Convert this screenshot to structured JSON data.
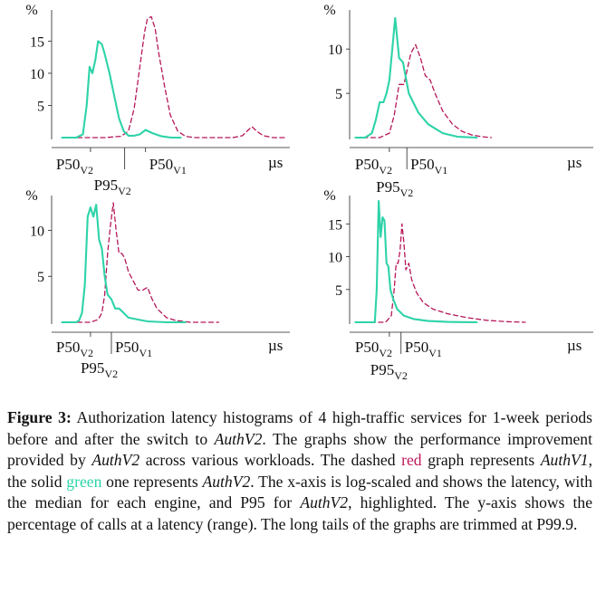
{
  "colors": {
    "v1": "#b5175a",
    "v2": "#2ed3a8",
    "axis": "#222222",
    "caption_red": "#c0185a",
    "caption_green": "#2bd4a8"
  },
  "chart_data": [
    {
      "type": "line",
      "x_scale": "log",
      "y_unit": "%",
      "x_unit": "µs",
      "yticks": [
        5,
        10,
        15
      ],
      "ylim": [
        0,
        19
      ],
      "x_markers": [
        {
          "label": "P50",
          "sub": "V2",
          "x": 0.4
        },
        {
          "label": "P95",
          "sub": "V2",
          "x": 0.76
        },
        {
          "label": "P50",
          "sub": "V1",
          "x": 0.98
        }
      ],
      "series": [
        {
          "id": "v1",
          "style": "dashed",
          "x": [
            0.1,
            0.3,
            0.55,
            0.72,
            0.8,
            0.86,
            0.92,
            0.97,
            1.0,
            1.04,
            1.08,
            1.12,
            1.18,
            1.24,
            1.32,
            1.4,
            1.5,
            1.7,
            1.9,
            2.0,
            2.05,
            2.1,
            2.15,
            2.22,
            2.32,
            2.45
          ],
          "y": [
            0,
            0,
            0,
            0.2,
            1.0,
            4.5,
            11.0,
            16.5,
            18.5,
            18.8,
            17.0,
            13.0,
            8.0,
            3.5,
            1.0,
            0.2,
            0,
            0,
            0,
            0.3,
            1.0,
            1.7,
            1.0,
            0.3,
            0,
            0
          ]
        },
        {
          "id": "v2",
          "style": "solid",
          "x": [
            0.1,
            0.25,
            0.32,
            0.36,
            0.39,
            0.42,
            0.45,
            0.48,
            0.52,
            0.55,
            0.6,
            0.65,
            0.7,
            0.75,
            0.8,
            0.86,
            0.92,
            0.98,
            1.05,
            1.15,
            1.25,
            1.35
          ],
          "y": [
            0,
            0,
            0.5,
            5.0,
            11.0,
            10.0,
            12.0,
            15.0,
            14.5,
            13.0,
            10.0,
            6.5,
            3.0,
            1.0,
            0.3,
            0.3,
            0.5,
            1.2,
            0.7,
            0.2,
            0,
            0
          ]
        }
      ]
    },
    {
      "type": "line",
      "x_scale": "log",
      "y_unit": "%",
      "x_unit": "µs",
      "yticks": [
        5,
        10
      ],
      "ylim": [
        0,
        13.8
      ],
      "x_markers": [
        {
          "label": "P50",
          "sub": "V2",
          "x": 0.4
        },
        {
          "label": "P95",
          "sub": "V2",
          "x": 0.58
        },
        {
          "label": "P50",
          "sub": "V1",
          "x": 0.58
        }
      ],
      "series": [
        {
          "id": "v1",
          "style": "dashed",
          "x": [
            0.05,
            0.3,
            0.4,
            0.45,
            0.5,
            0.55,
            0.58,
            0.62,
            0.67,
            0.72,
            0.77,
            0.82,
            0.87,
            0.95,
            1.05,
            1.15,
            1.25,
            1.35,
            1.45
          ],
          "y": [
            0,
            0,
            0.5,
            2.5,
            6.0,
            6.0,
            7.5,
            9.5,
            10.5,
            9.0,
            7.0,
            6.5,
            5.0,
            3.0,
            1.5,
            0.7,
            0.3,
            0.1,
            0
          ]
        },
        {
          "id": "v2",
          "style": "solid",
          "x": [
            0.05,
            0.15,
            0.22,
            0.26,
            0.3,
            0.34,
            0.37,
            0.4,
            0.43,
            0.46,
            0.5,
            0.54,
            0.6,
            0.7,
            0.8,
            0.95,
            1.1,
            1.3
          ],
          "y": [
            0,
            0,
            0.5,
            2.0,
            4.0,
            4.0,
            5.0,
            6.5,
            10.0,
            13.5,
            9.0,
            8.5,
            5.0,
            2.8,
            1.5,
            0.5,
            0.1,
            0
          ]
        }
      ]
    },
    {
      "type": "line",
      "x_scale": "log",
      "y_unit": "%",
      "x_unit": "µs",
      "yticks": [
        5,
        10
      ],
      "ylim": [
        0,
        13.2
      ],
      "x_markers": [
        {
          "label": "P50",
          "sub": "V2",
          "x": 0.4
        },
        {
          "label": "P95",
          "sub": "V2",
          "x": 0.62
        },
        {
          "label": "P50",
          "sub": "V1",
          "x": 0.62
        }
      ],
      "series": [
        {
          "id": "v1",
          "style": "dashed",
          "x": [
            0.1,
            0.4,
            0.48,
            0.52,
            0.55,
            0.58,
            0.61,
            0.64,
            0.67,
            0.7,
            0.73,
            0.76,
            0.8,
            0.85,
            0.9,
            0.95,
            1.0,
            1.05,
            1.1,
            1.2,
            1.3,
            1.45,
            1.6,
            1.75
          ],
          "y": [
            0,
            0,
            0.3,
            1.0,
            3.0,
            7.5,
            10.5,
            13.0,
            10.0,
            7.5,
            7.5,
            7.0,
            5.5,
            4.5,
            3.5,
            3.5,
            3.8,
            2.5,
            1.5,
            0.5,
            0.2,
            0,
            0,
            0
          ]
        },
        {
          "id": "v2",
          "style": "solid",
          "x": [
            0.1,
            0.25,
            0.28,
            0.31,
            0.34,
            0.37,
            0.4,
            0.43,
            0.46,
            0.49,
            0.52,
            0.55,
            0.58,
            0.62,
            0.66,
            0.7,
            0.75,
            0.8,
            0.9,
            1.0,
            1.2,
            1.4
          ],
          "y": [
            0,
            0,
            0.2,
            1.0,
            4.0,
            11.5,
            12.5,
            11.5,
            12.8,
            9.0,
            8.0,
            5.0,
            3.0,
            2.5,
            1.5,
            1.5,
            1.0,
            0.5,
            0.3,
            0.1,
            0,
            0
          ]
        }
      ]
    },
    {
      "type": "line",
      "x_scale": "log",
      "y_unit": "%",
      "x_unit": "µs",
      "yticks": [
        5,
        10,
        15
      ],
      "ylim": [
        0,
        18.5
      ],
      "x_markers": [
        {
          "label": "P50",
          "sub": "V2",
          "x": 0.4
        },
        {
          "label": "P95",
          "sub": "V2",
          "x": 0.52
        },
        {
          "label": "P50",
          "sub": "V1",
          "x": 0.52
        }
      ],
      "series": [
        {
          "id": "v1",
          "style": "dashed",
          "x": [
            0.05,
            0.36,
            0.42,
            0.45,
            0.47,
            0.49,
            0.51,
            0.53,
            0.55,
            0.57,
            0.6,
            0.63,
            0.68,
            0.75,
            0.85,
            1.0,
            1.2,
            1.4,
            1.6,
            1.8
          ],
          "y": [
            0,
            0,
            1.0,
            5.0,
            9.0,
            9.0,
            11.0,
            15.0,
            12.0,
            8.0,
            9.0,
            6.5,
            4.5,
            3.0,
            2.0,
            1.3,
            0.7,
            0.3,
            0.1,
            0
          ]
        },
        {
          "id": "v2",
          "style": "solid",
          "x": [
            0.05,
            0.25,
            0.27,
            0.29,
            0.31,
            0.33,
            0.35,
            0.37,
            0.39,
            0.41,
            0.44,
            0.48,
            0.55,
            0.65,
            0.8,
            1.0,
            1.3
          ],
          "y": [
            0,
            0,
            5.0,
            18.5,
            13.0,
            16.0,
            15.5,
            9.0,
            8.5,
            5.0,
            3.5,
            2.0,
            1.0,
            0.5,
            0.2,
            0.05,
            0
          ]
        }
      ]
    }
  ],
  "caption": {
    "label": "Figure 3:",
    "part1": " Authorization latency histograms of 4 high-traffic services for 1-week periods before and after the switch to ",
    "em1": "AuthV2",
    "part2": ". The graphs show the performance improvement provided by ",
    "em2": "AuthV2",
    "part3": " across various workloads. The dashed ",
    "red_word": "red",
    "part4": " graph represents ",
    "em3": "AuthV1",
    "part5": ", the solid ",
    "green_word": "green",
    "part6": " one represents ",
    "em4": "AuthV2",
    "part7": ". The x-axis is log-scaled and shows the latency, with the median for each engine, and P95 for ",
    "em5": "AuthV2",
    "part8": ", highlighted. The y-axis shows the percentage of calls at a latency (range). The long tails of the graphs are trimmed at P99.9."
  }
}
